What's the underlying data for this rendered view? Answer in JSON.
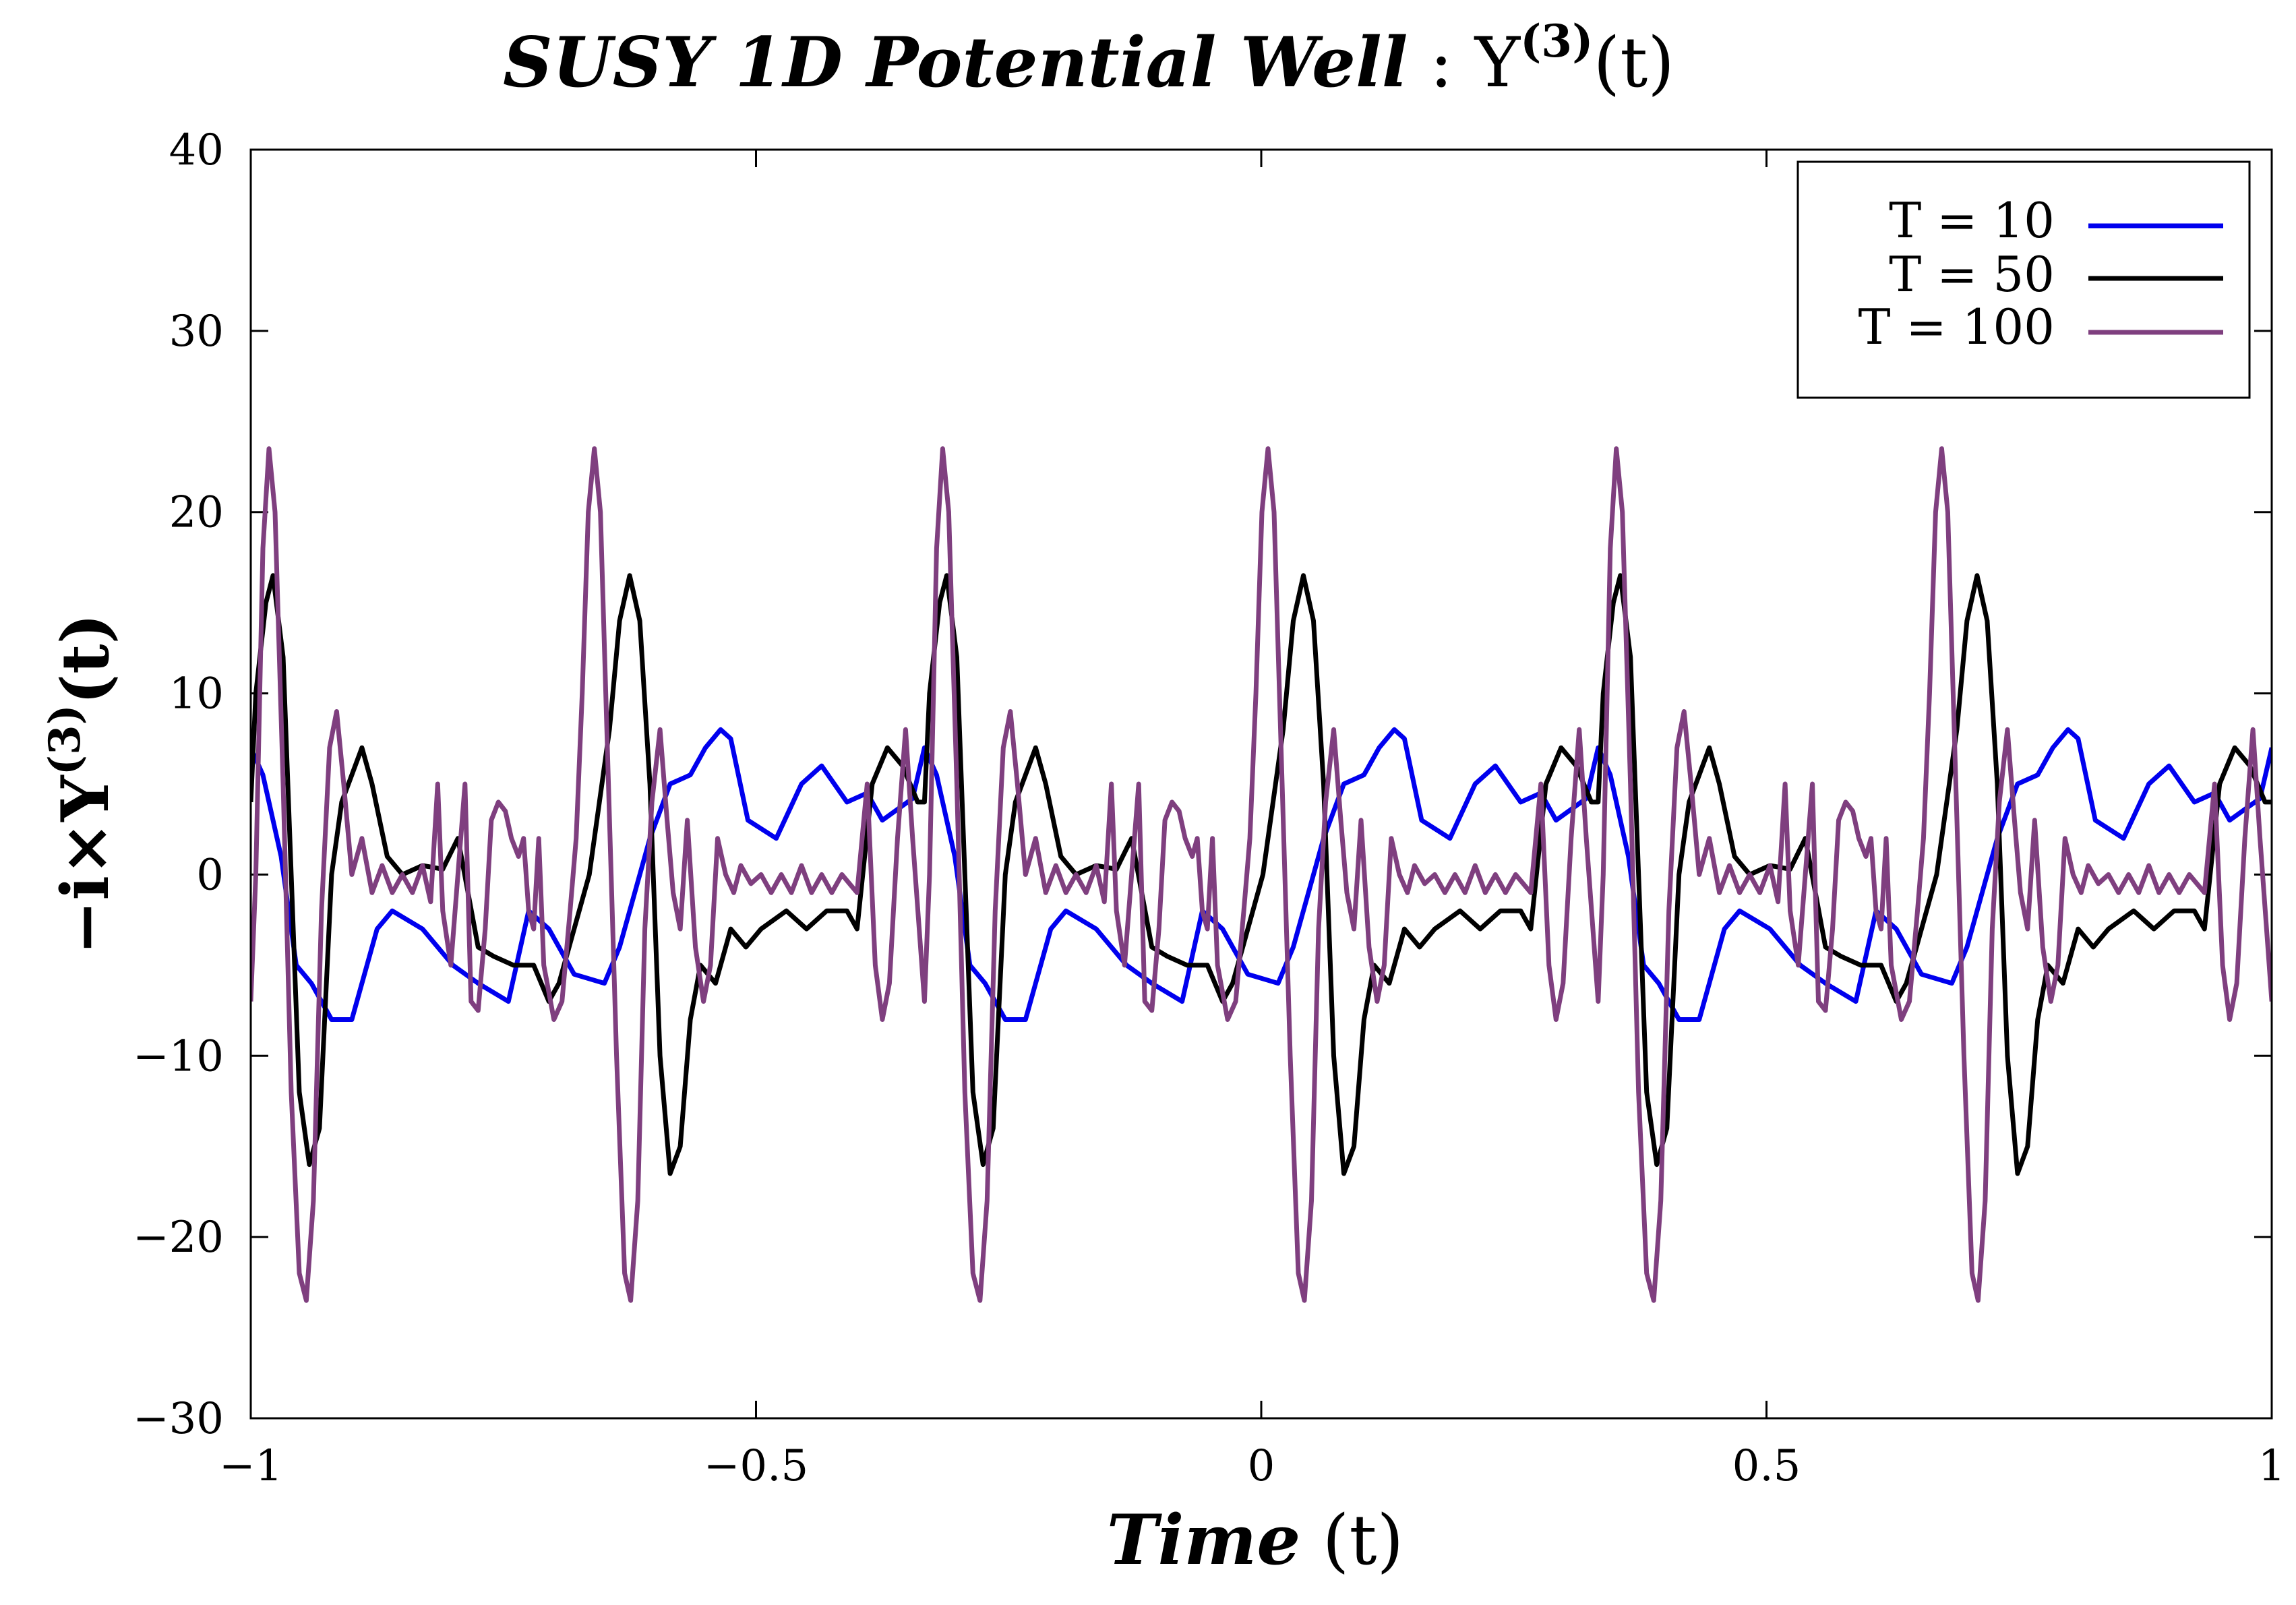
{
  "chart_data": {
    "type": "line",
    "title": {
      "italic": "SUSY 1D Potential Well",
      "sep": " : ",
      "symbol": "Y",
      "superscript": "(3)",
      "arg": "(t)"
    },
    "xlabel": {
      "italic": "Time",
      "normal": " (t)"
    },
    "ylabel": {
      "prefix": "−i×Y",
      "superscript": "(3)",
      "suffix": "(t)"
    },
    "xlim": [
      -1,
      1
    ],
    "ylim": [
      -30,
      40
    ],
    "x_ticks": [
      -1,
      -0.5,
      0,
      0.5,
      1
    ],
    "x_tick_labels": [
      "−1",
      "−0.5",
      "0",
      "0.5",
      "1"
    ],
    "y_ticks": [
      -30,
      -20,
      -10,
      0,
      10,
      20,
      30,
      40
    ],
    "y_tick_labels": [
      "−30",
      "−20",
      "−10",
      "0",
      "10",
      "20",
      "30",
      "40"
    ],
    "legend_position": "top-right",
    "period": 0.6667,
    "series": [
      {
        "name": "T = 10",
        "color": "#0000ee",
        "keypoints": [
          [
            0,
            7
          ],
          [
            0.012,
            5.5
          ],
          [
            0.03,
            1
          ],
          [
            0.045,
            -5
          ],
          [
            0.06,
            -6
          ],
          [
            0.08,
            -8
          ],
          [
            0.1,
            -8
          ],
          [
            0.125,
            -3
          ],
          [
            0.14,
            -2
          ],
          [
            0.17,
            -3
          ],
          [
            0.2,
            -5
          ],
          [
            0.225,
            -6
          ],
          [
            0.255,
            -7
          ],
          [
            0.275,
            -2
          ],
          [
            0.295,
            -3
          ],
          [
            0.32,
            -5.5
          ],
          [
            0.35,
            -6
          ],
          [
            0.365,
            -4
          ],
          [
            0.395,
            2
          ],
          [
            0.415,
            5
          ],
          [
            0.435,
            5.5
          ],
          [
            0.45,
            7
          ],
          [
            0.465,
            8
          ],
          [
            0.475,
            7.5
          ],
          [
            0.492,
            3
          ],
          [
            0.52,
            2
          ],
          [
            0.545,
            5
          ],
          [
            0.565,
            6
          ],
          [
            0.59,
            4
          ],
          [
            0.61,
            4.5
          ],
          [
            0.625,
            3
          ],
          [
            0.655,
            4.2
          ],
          [
            0.6667,
            7
          ]
        ],
        "cycles": 3
      },
      {
        "name": "T = 50",
        "color": "#000000",
        "keypoints": [
          [
            0,
            4
          ],
          [
            0.005,
            10
          ],
          [
            0.015,
            15
          ],
          [
            0.022,
            16.5
          ],
          [
            0.032,
            12
          ],
          [
            0.04,
            0
          ],
          [
            0.048,
            -12
          ],
          [
            0.058,
            -16
          ],
          [
            0.068,
            -14
          ],
          [
            0.08,
            0
          ],
          [
            0.09,
            4
          ],
          [
            0.1,
            5.5
          ],
          [
            0.11,
            7
          ],
          [
            0.12,
            5
          ],
          [
            0.135,
            1
          ],
          [
            0.15,
            0
          ],
          [
            0.17,
            0.5
          ],
          [
            0.19,
            0.3
          ],
          [
            0.205,
            2
          ],
          [
            0.225,
            -4
          ],
          [
            0.24,
            -4.5
          ],
          [
            0.26,
            -5
          ],
          [
            0.28,
            -5
          ],
          [
            0.295,
            -7
          ],
          [
            0.305,
            -6
          ],
          [
            0.315,
            -4
          ],
          [
            0.335,
            0
          ],
          [
            0.345,
            4
          ],
          [
            0.355,
            8
          ],
          [
            0.365,
            14
          ],
          [
            0.375,
            16.5
          ],
          [
            0.385,
            14
          ],
          [
            0.395,
            5
          ],
          [
            0.405,
            -10
          ],
          [
            0.415,
            -16.5
          ],
          [
            0.425,
            -15
          ],
          [
            0.435,
            -8
          ],
          [
            0.445,
            -5
          ],
          [
            0.46,
            -6
          ],
          [
            0.475,
            -3
          ],
          [
            0.49,
            -4
          ],
          [
            0.505,
            -3
          ],
          [
            0.53,
            -2
          ],
          [
            0.55,
            -3
          ],
          [
            0.57,
            -2
          ],
          [
            0.59,
            -2
          ],
          [
            0.6,
            -3
          ],
          [
            0.615,
            5
          ],
          [
            0.63,
            7
          ],
          [
            0.645,
            6
          ],
          [
            0.66,
            4
          ],
          [
            0.6667,
            4
          ]
        ],
        "cycles": 3
      },
      {
        "name": "T = 100",
        "color": "#7f3f7f",
        "keypoints": [
          [
            0,
            -7
          ],
          [
            0.005,
            0
          ],
          [
            0.012,
            18
          ],
          [
            0.018,
            23.5
          ],
          [
            0.024,
            20
          ],
          [
            0.032,
            5
          ],
          [
            0.04,
            -12
          ],
          [
            0.048,
            -22
          ],
          [
            0.055,
            -23.5
          ],
          [
            0.062,
            -18
          ],
          [
            0.07,
            -2
          ],
          [
            0.078,
            7
          ],
          [
            0.085,
            9
          ],
          [
            0.092,
            5
          ],
          [
            0.1,
            0
          ],
          [
            0.11,
            2
          ],
          [
            0.12,
            -1
          ],
          [
            0.13,
            0.5
          ],
          [
            0.14,
            -1
          ],
          [
            0.15,
            0
          ],
          [
            0.16,
            -1
          ],
          [
            0.17,
            0.5
          ],
          [
            0.178,
            -1.5
          ],
          [
            0.185,
            5
          ],
          [
            0.19,
            -2
          ],
          [
            0.198,
            -5
          ],
          [
            0.205,
            0
          ],
          [
            0.212,
            5
          ],
          [
            0.218,
            -7
          ],
          [
            0.225,
            -7.5
          ],
          [
            0.232,
            -3
          ],
          [
            0.238,
            3
          ],
          [
            0.245,
            4
          ],
          [
            0.252,
            3.5
          ],
          [
            0.258,
            2
          ],
          [
            0.265,
            1
          ],
          [
            0.27,
            2
          ],
          [
            0.275,
            -2
          ],
          [
            0.28,
            -3
          ],
          [
            0.285,
            2
          ],
          [
            0.29,
            -5
          ],
          [
            0.3,
            -8
          ],
          [
            0.308,
            -7
          ],
          [
            0.316,
            -2
          ],
          [
            0.322,
            2
          ],
          [
            0.328,
            10
          ],
          [
            0.334,
            20
          ],
          [
            0.34,
            23.5
          ],
          [
            0.346,
            20
          ],
          [
            0.354,
            5
          ],
          [
            0.362,
            -10
          ],
          [
            0.37,
            -22
          ],
          [
            0.376,
            -23.5
          ],
          [
            0.383,
            -18
          ],
          [
            0.39,
            -3
          ],
          [
            0.397,
            4
          ],
          [
            0.405,
            8
          ],
          [
            0.412,
            3
          ],
          [
            0.418,
            -1
          ],
          [
            0.425,
            -3
          ],
          [
            0.432,
            3
          ],
          [
            0.44,
            -4
          ],
          [
            0.448,
            -7
          ],
          [
            0.455,
            -5
          ],
          [
            0.462,
            2
          ],
          [
            0.47,
            0
          ],
          [
            0.478,
            -1
          ],
          [
            0.485,
            0.5
          ],
          [
            0.495,
            -0.5
          ],
          [
            0.505,
            0
          ],
          [
            0.515,
            -1
          ],
          [
            0.525,
            0
          ],
          [
            0.535,
            -1
          ],
          [
            0.545,
            0.5
          ],
          [
            0.555,
            -1
          ],
          [
            0.565,
            0
          ],
          [
            0.575,
            -1
          ],
          [
            0.585,
            0
          ],
          [
            0.6,
            -1
          ],
          [
            0.61,
            5
          ],
          [
            0.618,
            -5
          ],
          [
            0.625,
            -8
          ],
          [
            0.632,
            -6
          ],
          [
            0.64,
            2
          ],
          [
            0.648,
            8
          ],
          [
            0.655,
            2
          ],
          [
            0.6667,
            -7
          ]
        ],
        "cycles": 3
      }
    ]
  }
}
